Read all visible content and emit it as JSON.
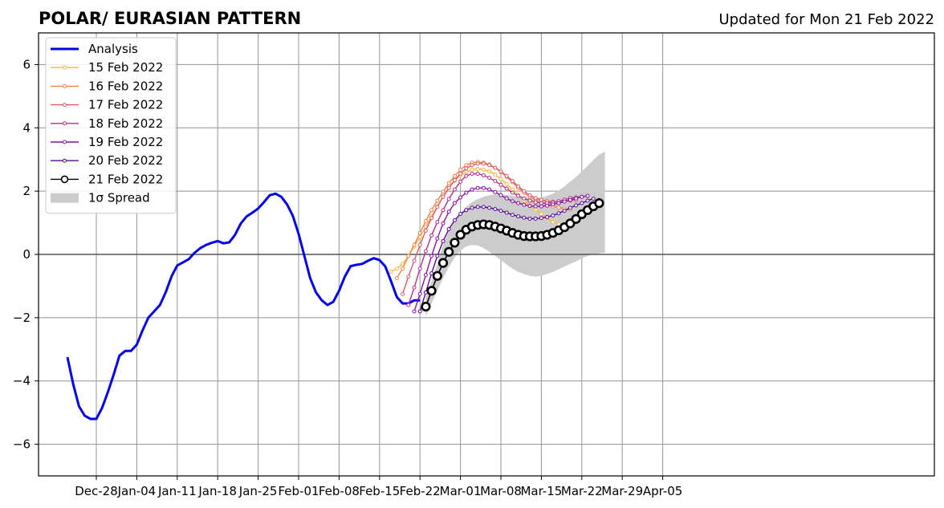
{
  "header": {
    "title": "POLAR/ EURASIAN  PATTERN",
    "updated": "Updated for Mon 21 Feb 2022"
  },
  "colors": {
    "analysis": "#0000ee",
    "spread": "#cccccc",
    "grid": "#9e9e9e",
    "zero_line": "#555555"
  },
  "chart_data": {
    "type": "line",
    "title": "POLAR/ EURASIAN  PATTERN",
    "subtitle": "Updated for Mon 21 Feb 2022",
    "x_is_days": true,
    "xlim": [
      -10,
      145
    ],
    "ylim": [
      -7,
      7
    ],
    "y_ticks": [
      -6,
      -4,
      -2,
      0,
      2,
      4,
      6
    ],
    "y_tick_labels": [
      "−6",
      "−4",
      "−2",
      "0",
      "2",
      "4",
      "6"
    ],
    "x_ticks": [
      {
        "day": 0,
        "label": "Dec-28"
      },
      {
        "day": 7,
        "label": "Jan-04"
      },
      {
        "day": 14,
        "label": "Jan-11"
      },
      {
        "day": 21,
        "label": "Jan-18"
      },
      {
        "day": 28,
        "label": "Jan-25"
      },
      {
        "day": 35,
        "label": "Feb-01"
      },
      {
        "day": 42,
        "label": "Feb-08"
      },
      {
        "day": 49,
        "label": "Feb-15"
      },
      {
        "day": 56,
        "label": "Feb-22"
      },
      {
        "day": 63,
        "label": "Mar-01"
      },
      {
        "day": 70,
        "label": "Mar-08"
      },
      {
        "day": 77,
        "label": "Mar-15"
      },
      {
        "day": 84,
        "label": "Mar-22"
      },
      {
        "day": 91,
        "label": "Mar-29"
      },
      {
        "day": 98,
        "label": "Apr-05"
      }
    ],
    "grid": true,
    "legend_position": "top-left",
    "analysis": {
      "name": "Analysis",
      "color": "#0000ee",
      "x": [
        -5,
        -4,
        -3,
        -2,
        -1,
        0,
        1,
        2,
        3,
        4,
        5,
        6,
        7,
        8,
        9,
        10,
        11,
        12,
        13,
        14,
        15,
        16,
        17,
        18,
        19,
        20,
        21,
        22,
        23,
        24,
        25,
        26,
        27,
        28,
        29,
        30,
        31,
        32,
        33,
        34,
        35,
        36,
        37,
        38,
        39,
        40,
        41,
        42,
        43,
        44,
        45,
        46,
        47,
        48,
        49,
        50,
        51,
        52,
        53,
        54,
        55,
        56
      ],
      "y": [
        -3.25,
        -4.1,
        -4.8,
        -5.1,
        -5.2,
        -5.2,
        -4.85,
        -4.35,
        -3.8,
        -3.2,
        -3.05,
        -3.05,
        -2.85,
        -2.4,
        -2.0,
        -1.8,
        -1.6,
        -1.2,
        -0.7,
        -0.35,
        -0.25,
        -0.15,
        0.05,
        0.2,
        0.3,
        0.37,
        0.42,
        0.35,
        0.38,
        0.62,
        0.98,
        1.2,
        1.32,
        1.45,
        1.65,
        1.87,
        1.92,
        1.82,
        1.58,
        1.22,
        0.65,
        -0.05,
        -0.75,
        -1.2,
        -1.45,
        -1.6,
        -1.5,
        -1.15,
        -0.7,
        -0.37,
        -0.33,
        -0.3,
        -0.2,
        -0.12,
        -0.18,
        -0.38,
        -0.85,
        -1.35,
        -1.55,
        -1.55,
        -1.45,
        -1.45
      ]
    },
    "series": [
      {
        "name": "15 Feb 2022",
        "color": "#f7b643",
        "start_day": 51,
        "y": [
          -0.55,
          -0.45,
          -0.3,
          -0.05,
          0.25,
          0.55,
          0.88,
          1.2,
          1.52,
          1.82,
          2.1,
          2.32,
          2.5,
          2.6,
          2.68,
          2.7,
          2.68,
          2.62,
          2.52,
          2.38,
          2.22,
          2.05,
          1.88,
          1.7,
          1.55,
          1.42,
          1.28,
          1.15,
          1.02,
          0.95,
          0.88
        ]
      },
      {
        "name": "16 Feb 2022",
        "color": "#ee8547",
        "start_day": 52,
        "y": [
          -0.75,
          -0.45,
          -0.05,
          0.3,
          0.68,
          1.05,
          1.4,
          1.7,
          1.98,
          2.25,
          2.48,
          2.68,
          2.82,
          2.9,
          2.92,
          2.9,
          2.84,
          2.74,
          2.6,
          2.45,
          2.28,
          2.1,
          1.95,
          1.82,
          1.72,
          1.63,
          1.57,
          1.52,
          1.48,
          1.45,
          1.42
        ]
      },
      {
        "name": "17 Feb 2022",
        "color": "#d9596d",
        "start_day": 53,
        "y": [
          -1.25,
          -0.7,
          -0.2,
          0.3,
          0.75,
          1.15,
          1.5,
          1.82,
          2.1,
          2.35,
          2.55,
          2.72,
          2.82,
          2.87,
          2.87,
          2.82,
          2.74,
          2.62,
          2.48,
          2.32,
          2.15,
          2.0,
          1.87,
          1.78,
          1.72,
          1.68,
          1.67,
          1.67,
          1.68,
          1.7,
          1.72
        ]
      },
      {
        "name": "18 Feb 2022",
        "color": "#b5318f",
        "start_day": 54,
        "y": [
          -1.6,
          -1.05,
          -0.45,
          0.1,
          0.6,
          1.02,
          1.4,
          1.75,
          2.05,
          2.3,
          2.48,
          2.55,
          2.55,
          2.5,
          2.42,
          2.32,
          2.2,
          2.08,
          1.95,
          1.85,
          1.77,
          1.7,
          1.65,
          1.62,
          1.62,
          1.64,
          1.68,
          1.73,
          1.78,
          1.8,
          1.82
        ]
      },
      {
        "name": "19 Feb 2022",
        "color": "#8b10a5",
        "start_day": 55,
        "y": [
          -1.8,
          -1.25,
          -0.65,
          -0.05,
          0.5,
          0.98,
          1.35,
          1.62,
          1.8,
          1.95,
          2.05,
          2.1,
          2.1,
          2.05,
          1.97,
          1.87,
          1.77,
          1.68,
          1.62,
          1.57,
          1.53,
          1.52,
          1.52,
          1.54,
          1.58,
          1.62,
          1.67,
          1.72,
          1.77,
          1.82,
          1.85
        ]
      },
      {
        "name": "20 Feb 2022",
        "color": "#5b0898",
        "start_day": 56,
        "y": [
          -1.8,
          -1.2,
          -0.6,
          -0.05,
          0.42,
          0.8,
          1.08,
          1.28,
          1.4,
          1.47,
          1.5,
          1.5,
          1.47,
          1.43,
          1.38,
          1.32,
          1.25,
          1.2,
          1.16,
          1.13,
          1.13,
          1.15,
          1.18,
          1.23,
          1.3,
          1.38,
          1.47,
          1.55,
          1.62,
          1.7,
          1.76
        ]
      },
      {
        "name": "21 Feb 2022",
        "color": "#000000",
        "start_day": 57,
        "y": [
          -1.65,
          -1.15,
          -0.68,
          -0.27,
          0.08,
          0.37,
          0.62,
          0.78,
          0.88,
          0.93,
          0.95,
          0.93,
          0.88,
          0.82,
          0.75,
          0.68,
          0.62,
          0.58,
          0.57,
          0.57,
          0.58,
          0.62,
          0.68,
          0.76,
          0.86,
          0.98,
          1.12,
          1.27,
          1.4,
          1.52,
          1.62
        ]
      }
    ],
    "spread": {
      "name": "1σ Spread",
      "color": "#cccccc",
      "start_day": 57,
      "upper": [
        -1.35,
        -0.85,
        -0.3,
        0.3,
        0.75,
        1.05,
        1.3,
        1.5,
        1.65,
        1.75,
        1.82,
        1.87,
        1.9,
        1.9,
        1.88,
        1.85,
        1.82,
        1.8,
        1.78,
        1.78,
        1.8,
        1.85,
        1.92,
        2.02,
        2.15,
        2.3,
        2.45,
        2.62,
        2.8,
        2.98,
        3.15,
        3.25
      ],
      "lower": [
        -1.95,
        -1.55,
        -1.15,
        -0.75,
        -0.4,
        -0.1,
        0.12,
        0.25,
        0.3,
        0.28,
        0.2,
        0.08,
        -0.05,
        -0.18,
        -0.32,
        -0.45,
        -0.55,
        -0.62,
        -0.68,
        -0.7,
        -0.68,
        -0.62,
        -0.55,
        -0.47,
        -0.38,
        -0.3,
        -0.22,
        -0.12,
        -0.05,
        0.0,
        0.03,
        0.05
      ]
    }
  }
}
